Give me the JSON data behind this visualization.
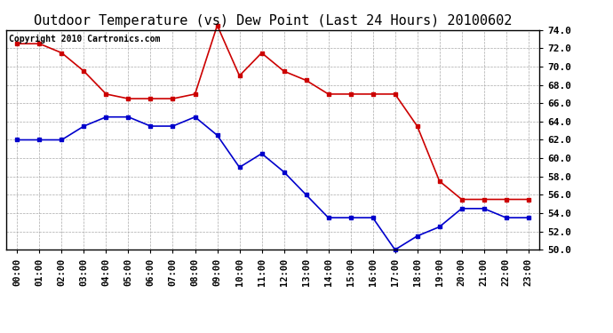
{
  "title": "Outdoor Temperature (vs) Dew Point (Last 24 Hours) 20100602",
  "copyright_text": "Copyright 2010 Cartronics.com",
  "x_labels": [
    "00:00",
    "01:00",
    "02:00",
    "03:00",
    "04:00",
    "05:00",
    "06:00",
    "07:00",
    "08:00",
    "09:00",
    "10:00",
    "11:00",
    "12:00",
    "13:00",
    "14:00",
    "15:00",
    "16:00",
    "17:00",
    "18:00",
    "19:00",
    "20:00",
    "21:00",
    "22:00",
    "23:00"
  ],
  "temp_data": [
    72.5,
    72.5,
    71.5,
    69.5,
    67.0,
    66.5,
    66.5,
    66.5,
    67.0,
    74.5,
    69.0,
    71.5,
    69.5,
    68.5,
    67.0,
    67.0,
    67.0,
    67.0,
    63.5,
    57.5,
    55.5,
    55.5,
    55.5,
    55.5
  ],
  "dew_data": [
    62.0,
    62.0,
    62.0,
    63.5,
    64.5,
    64.5,
    63.5,
    63.5,
    64.5,
    62.5,
    59.0,
    60.5,
    58.5,
    56.0,
    53.5,
    53.5,
    53.5,
    50.0,
    51.5,
    52.5,
    54.5,
    54.5,
    53.5,
    53.5
  ],
  "temp_color": "#cc0000",
  "dew_color": "#0000cc",
  "ylim": [
    50.0,
    74.0
  ],
  "yticks": [
    50.0,
    52.0,
    54.0,
    56.0,
    58.0,
    60.0,
    62.0,
    64.0,
    66.0,
    68.0,
    70.0,
    72.0,
    74.0
  ],
  "background_color": "#ffffff",
  "grid_color": "#aaaaaa",
  "title_fontsize": 11,
  "copyright_fontsize": 7,
  "tick_fontsize": 7.5,
  "ytick_fontsize": 8,
  "markersize": 3.5,
  "linewidth": 1.2
}
